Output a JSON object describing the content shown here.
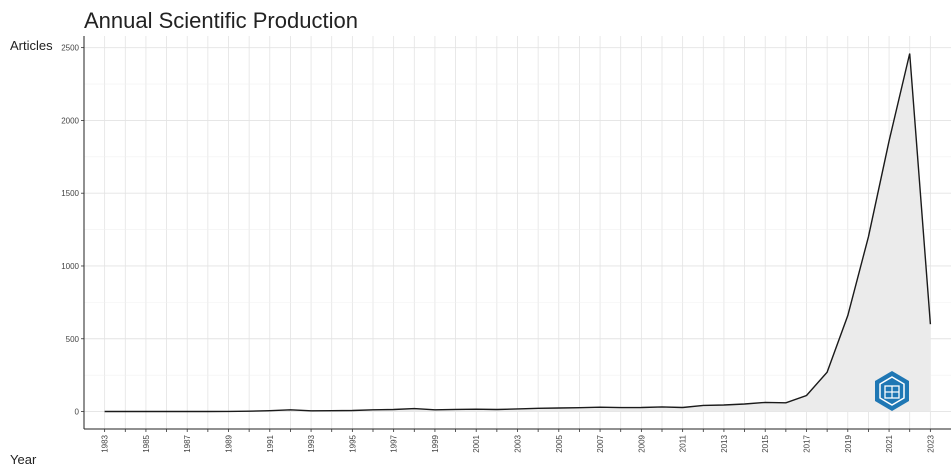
{
  "chart_data": {
    "type": "area",
    "title": "Annual Scientific Production",
    "xlabel": "Year",
    "ylabel": "Articles",
    "x": [
      1983,
      1984,
      1985,
      1986,
      1987,
      1988,
      1989,
      1990,
      1991,
      1992,
      1993,
      1994,
      1995,
      1996,
      1997,
      1998,
      1999,
      2000,
      2001,
      2002,
      2003,
      2004,
      2005,
      2006,
      2007,
      2008,
      2009,
      2010,
      2011,
      2012,
      2013,
      2014,
      2015,
      2016,
      2017,
      2018,
      2019,
      2020,
      2021,
      2022,
      2023
    ],
    "y": [
      0,
      0,
      0,
      0,
      0,
      0,
      1,
      2,
      6,
      12,
      5,
      6,
      7,
      12,
      14,
      20,
      12,
      15,
      16,
      14,
      18,
      22,
      24,
      26,
      30,
      27,
      28,
      32,
      28,
      42,
      45,
      52,
      63,
      60,
      110,
      270,
      660,
      1200,
      1860,
      2460,
      600
    ],
    "x_tick_labels": [
      "1983",
      "1985",
      "1987",
      "1989",
      "1991",
      "1993",
      "1995",
      "1997",
      "1999",
      "2001",
      "2003",
      "2005",
      "2007",
      "2009",
      "2011",
      "2013",
      "2015",
      "2017",
      "2019",
      "2021",
      "2023"
    ],
    "y_ticks": [
      0,
      500,
      1000,
      1500,
      2000,
      2500
    ],
    "xlim": [
      1982,
      2024
    ],
    "ylim": [
      -120,
      2580
    ],
    "grid": true,
    "line_color": "#1a1a1a",
    "fill_color": "#ebebeb",
    "grid_color": "#e3e3e3"
  },
  "watermark": {
    "icon": "hexagon-logo-icon",
    "color": "#1f77b4"
  }
}
